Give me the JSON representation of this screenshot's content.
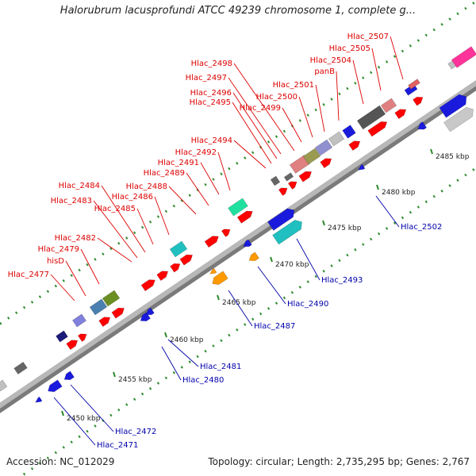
{
  "title": "Halorubrum lacusprofundi ATCC 49239 chromosome 1, complete g...",
  "footer": {
    "accession": "Accession: NC_012029",
    "topology": "Topology: circular; Length: 2,735,295 bp; Genes: 2,767"
  },
  "colors": {
    "backbone": "#b0b0b0",
    "ticks": "#2e8b2e",
    "forward_label": "#dd0000",
    "reverse_label": "#0000aa",
    "forward_gene": "#ff0000"
  },
  "ticks": [
    {
      "label": "2450 kbp"
    },
    {
      "label": "2455 kbp"
    },
    {
      "label": "2460 kbp"
    },
    {
      "label": "2465 kbp"
    },
    {
      "label": "2470 kbp"
    },
    {
      "label": "2475 kbp"
    },
    {
      "label": "2480 kbp"
    },
    {
      "label": "2485 kbp"
    }
  ],
  "forward_labels": [
    "Hlac_2477",
    "hisD",
    "Hlac_2479",
    "Hlac_2482",
    "Hlac_2483",
    "Hlac_2484",
    "Hlac_2485",
    "Hlac_2486",
    "Hlac_2488",
    "Hlac_2489",
    "Hlac_2491",
    "Hlac_2492",
    "Hlac_2494",
    "Hlac_2495",
    "Hlac_2496",
    "Hlac_2497",
    "Hlac_2498",
    "Hlac_2499",
    "Hlac_2500",
    "Hlac_2501",
    "panB",
    "Hlac_2504",
    "Hlac_2505",
    "Hlac_2507"
  ],
  "reverse_labels": [
    "Hlac_2471",
    "Hlac_2472",
    "Hlac_2480",
    "Hlac_2481",
    "Hlac_2487",
    "Hlac_2490",
    "Hlac_2493",
    "Hlac_2502"
  ]
}
